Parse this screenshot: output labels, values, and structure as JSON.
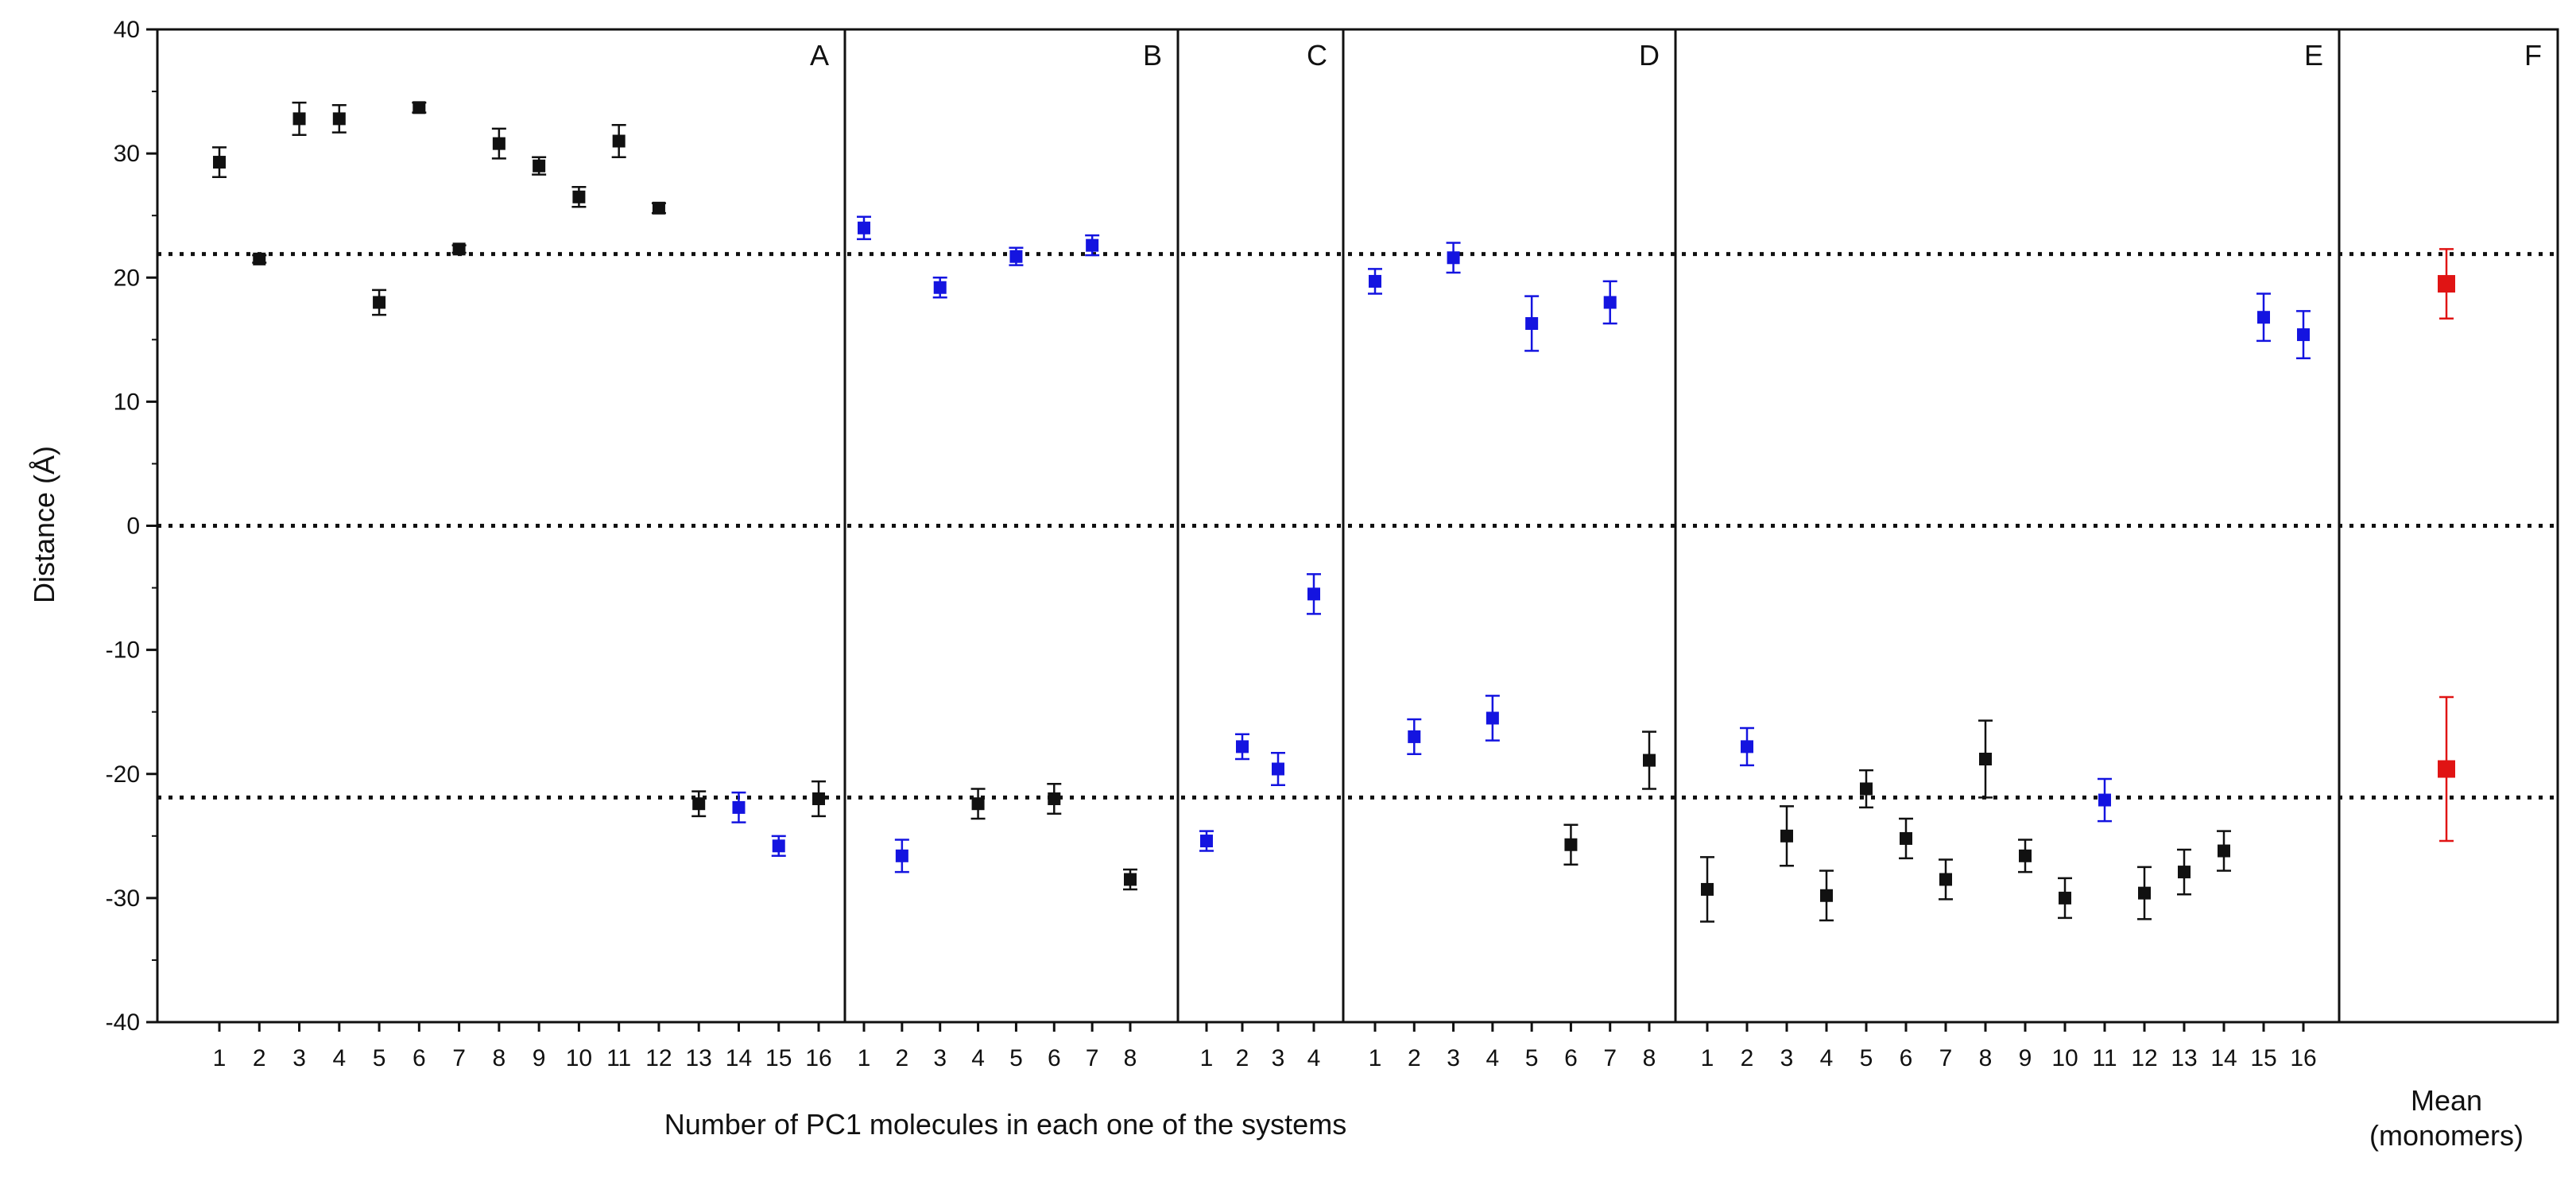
{
  "chart_data": {
    "type": "scatter",
    "ylabel": "Distance (Å)",
    "xlabel": "Number of PC1 molecules in each one of the systems",
    "ylim": [
      -40,
      40
    ],
    "yticks": [
      -40,
      -30,
      -20,
      -10,
      0,
      10,
      20,
      30,
      40
    ],
    "reference_lines": [
      21.9,
      0,
      -21.9
    ],
    "colors": {
      "black": "#111111",
      "blue": "#1414e0",
      "red": "#e01414"
    },
    "panels": [
      {
        "label": "A",
        "tick_labels": [
          "1",
          "2",
          "3",
          "4",
          "5",
          "6",
          "7",
          "8",
          "9",
          "10",
          "11",
          "12",
          "13",
          "14",
          "15",
          "16"
        ],
        "points": [
          {
            "x": 1,
            "y": 29.3,
            "err": 1.2,
            "color": "black"
          },
          {
            "x": 2,
            "y": 21.5,
            "err": 0.3,
            "color": "black"
          },
          {
            "x": 3,
            "y": 32.8,
            "err": 1.3,
            "color": "black"
          },
          {
            "x": 4,
            "y": 32.8,
            "err": 1.1,
            "color": "black"
          },
          {
            "x": 5,
            "y": 18.0,
            "err": 1.0,
            "color": "black"
          },
          {
            "x": 6,
            "y": 33.7,
            "err": 0.4,
            "color": "black"
          },
          {
            "x": 7,
            "y": 22.3,
            "err": 0.3,
            "color": "black"
          },
          {
            "x": 8,
            "y": 30.8,
            "err": 1.2,
            "color": "black"
          },
          {
            "x": 9,
            "y": 29.0,
            "err": 0.7,
            "color": "black"
          },
          {
            "x": 10,
            "y": 26.5,
            "err": 0.8,
            "color": "black"
          },
          {
            "x": 11,
            "y": 31.0,
            "err": 1.3,
            "color": "black"
          },
          {
            "x": 12,
            "y": 25.6,
            "err": 0.4,
            "color": "black"
          },
          {
            "x": 13,
            "y": -22.4,
            "err": 1.0,
            "color": "black"
          },
          {
            "x": 14,
            "y": -22.7,
            "err": 1.2,
            "color": "blue"
          },
          {
            "x": 15,
            "y": -25.8,
            "err": 0.8,
            "color": "blue"
          },
          {
            "x": 16,
            "y": -22.0,
            "err": 1.4,
            "color": "black"
          }
        ]
      },
      {
        "label": "B",
        "tick_labels": [
          "1",
          "2",
          "3",
          "4",
          "5",
          "6",
          "7",
          "8"
        ],
        "points": [
          {
            "x": 1,
            "y": 24.0,
            "err": 0.9,
            "color": "blue"
          },
          {
            "x": 2,
            "y": -26.6,
            "err": 1.3,
            "color": "blue"
          },
          {
            "x": 3,
            "y": 19.2,
            "err": 0.8,
            "color": "blue"
          },
          {
            "x": 4,
            "y": -22.4,
            "err": 1.2,
            "color": "black"
          },
          {
            "x": 5,
            "y": 21.7,
            "err": 0.7,
            "color": "blue"
          },
          {
            "x": 6,
            "y": -22.0,
            "err": 1.2,
            "color": "black"
          },
          {
            "x": 7,
            "y": 22.6,
            "err": 0.8,
            "color": "blue"
          },
          {
            "x": 8,
            "y": -28.5,
            "err": 0.8,
            "color": "black"
          }
        ]
      },
      {
        "label": "C",
        "tick_labels": [
          "1",
          "2",
          "3",
          "4"
        ],
        "points": [
          {
            "x": 1,
            "y": -25.4,
            "err": 0.8,
            "color": "blue"
          },
          {
            "x": 2,
            "y": -17.8,
            "err": 1.0,
            "color": "blue"
          },
          {
            "x": 3,
            "y": -19.6,
            "err": 1.3,
            "color": "blue"
          },
          {
            "x": 4,
            "y": -5.5,
            "err": 1.6,
            "color": "blue"
          }
        ]
      },
      {
        "label": "D",
        "tick_labels": [
          "1",
          "2",
          "3",
          "4",
          "5",
          "6",
          "7",
          "8"
        ],
        "points": [
          {
            "x": 1,
            "y": 19.7,
            "err": 1.0,
            "color": "blue"
          },
          {
            "x": 2,
            "y": -17.0,
            "err": 1.4,
            "color": "blue"
          },
          {
            "x": 3,
            "y": 21.6,
            "err": 1.2,
            "color": "blue"
          },
          {
            "x": 4,
            "y": -15.5,
            "err": 1.8,
            "color": "blue"
          },
          {
            "x": 5,
            "y": 16.3,
            "err": 2.2,
            "color": "blue"
          },
          {
            "x": 6,
            "y": -25.7,
            "err": 1.6,
            "color": "black"
          },
          {
            "x": 7,
            "y": 18.0,
            "err": 1.7,
            "color": "blue"
          },
          {
            "x": 8,
            "y": -18.9,
            "err": 2.3,
            "color": "black"
          }
        ]
      },
      {
        "label": "E",
        "tick_labels": [
          "1",
          "2",
          "3",
          "4",
          "5",
          "6",
          "7",
          "8",
          "9",
          "10",
          "11",
          "12",
          "13",
          "14",
          "15",
          "16"
        ],
        "points": [
          {
            "x": 1,
            "y": -29.3,
            "err": 2.6,
            "color": "black"
          },
          {
            "x": 2,
            "y": -17.8,
            "err": 1.5,
            "color": "blue"
          },
          {
            "x": 3,
            "y": -25.0,
            "err": 2.4,
            "color": "black"
          },
          {
            "x": 4,
            "y": -29.8,
            "err": 2.0,
            "color": "black"
          },
          {
            "x": 5,
            "y": -21.2,
            "err": 1.5,
            "color": "black"
          },
          {
            "x": 6,
            "y": -25.2,
            "err": 1.6,
            "color": "black"
          },
          {
            "x": 7,
            "y": -28.5,
            "err": 1.6,
            "color": "black"
          },
          {
            "x": 8,
            "y": -18.8,
            "err": 3.1,
            "color": "black"
          },
          {
            "x": 9,
            "y": -26.6,
            "err": 1.3,
            "color": "black"
          },
          {
            "x": 10,
            "y": -30.0,
            "err": 1.6,
            "color": "black"
          },
          {
            "x": 11,
            "y": -22.1,
            "err": 1.7,
            "color": "blue"
          },
          {
            "x": 12,
            "y": -29.6,
            "err": 2.1,
            "color": "black"
          },
          {
            "x": 13,
            "y": -27.9,
            "err": 1.8,
            "color": "black"
          },
          {
            "x": 14,
            "y": -26.2,
            "err": 1.6,
            "color": "black"
          },
          {
            "x": 15,
            "y": 16.8,
            "err": 1.9,
            "color": "blue"
          },
          {
            "x": 16,
            "y": 15.4,
            "err": 1.9,
            "color": "blue"
          }
        ]
      },
      {
        "label": "F",
        "tick_labels": [],
        "category_label": [
          "Mean",
          "(monomers)"
        ],
        "points": [
          {
            "x": 1,
            "y": 19.5,
            "err": 2.8,
            "color": "red"
          },
          {
            "x": 1,
            "y": -19.6,
            "err": 5.8,
            "color": "red"
          }
        ]
      }
    ]
  }
}
